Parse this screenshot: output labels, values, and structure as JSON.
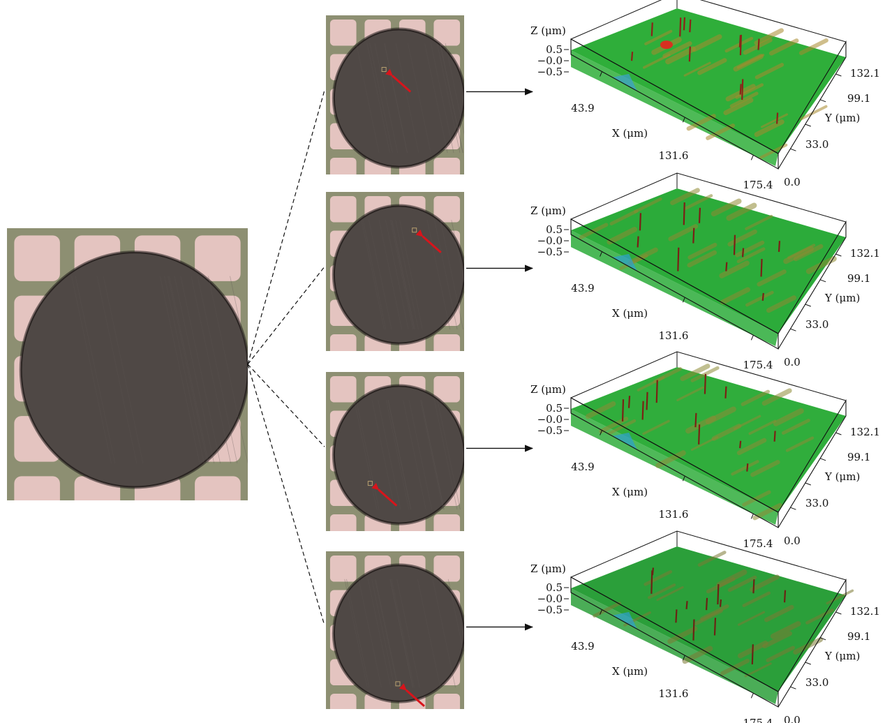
{
  "overview": {
    "name": "fiber-end-face-overview",
    "colors": {
      "grid_light": "#e9c7c4",
      "grid_dark": "#8d8f72",
      "disk": "#4f4845",
      "disk_edge": "#2a2422"
    }
  },
  "thumbnails": [
    {
      "marker": {
        "x": 0.42,
        "y": 0.34
      },
      "arrow_dir": "up-left"
    },
    {
      "marker": {
        "x": 0.64,
        "y": 0.24
      },
      "arrow_dir": "up-left"
    },
    {
      "marker": {
        "x": 0.32,
        "y": 0.7
      },
      "arrow_dir": "up-left"
    },
    {
      "marker": {
        "x": 0.52,
        "y": 0.84
      },
      "arrow_dir": "up-left"
    }
  ],
  "surface_plots": [
    {
      "z_label": "Z (μm)",
      "z_ticks": [
        "0.5",
        "−0.0",
        "−0.5"
      ],
      "x_label": "X (μm)",
      "x_ticks": [
        "43.9",
        "131.6",
        "175.4"
      ],
      "y_label": "Y (μm)",
      "y_ticks": [
        "132.1",
        "99.1",
        "33.0",
        "0.0"
      ],
      "colors": {
        "base": "#2fae3a",
        "high": "#a88a2e",
        "peak": "#8a2418",
        "low": "#3a9fd0",
        "hot": "#d83020"
      }
    },
    {
      "z_label": "Z (μm)",
      "z_ticks": [
        "0.5",
        "−0.0",
        "−0.5"
      ],
      "x_label": "X (μm)",
      "x_ticks": [
        "43.9",
        "131.6",
        "175.4"
      ],
      "y_label": "Y (μm)",
      "y_ticks": [
        "132.1",
        "99.1",
        "33.0",
        "0.0"
      ],
      "colors": {
        "base": "#2cab3a",
        "high": "#8f8a32",
        "peak": "#7a2016",
        "low": "#2c9fcf",
        "hot": "#a83020"
      }
    },
    {
      "z_label": "Z (μm)",
      "z_ticks": [
        "0.5",
        "−0.0",
        "−0.5"
      ],
      "x_label": "X (μm)",
      "x_ticks": [
        "43.9",
        "131.6",
        "175.4"
      ],
      "y_label": "Y (μm)",
      "y_ticks": [
        "132.1",
        "99.1",
        "33.0",
        "0.0"
      ],
      "colors": {
        "base": "#30ad3c",
        "high": "#8e8b36",
        "peak": "#7a2214",
        "low": "#2c9fcf",
        "hot": "#a83020"
      }
    },
    {
      "z_label": "Z (μm)",
      "z_ticks": [
        "0.5",
        "−0.0",
        "−0.5"
      ],
      "x_label": "X (μm)",
      "x_ticks": [
        "43.9",
        "131.6",
        "175.4"
      ],
      "y_label": "Y (μm)",
      "y_ticks": [
        "132.1",
        "99.1",
        "33.0",
        "0.0"
      ],
      "colors": {
        "base": "#2b9f3a",
        "high": "#7d7a34",
        "peak": "#6a2414",
        "low": "#2c9fcf",
        "hot": "#a83020"
      }
    }
  ]
}
